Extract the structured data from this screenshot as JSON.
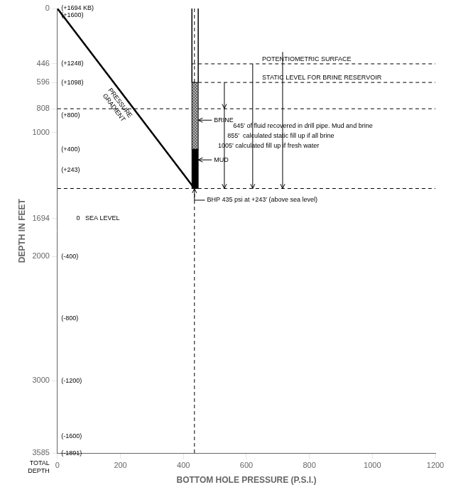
{
  "chart_data": {
    "type": "line",
    "xlabel": "BOTTOM HOLE PRESSURE (P.S.I.)",
    "ylabel": "DEPTH IN FEET",
    "xlim": [
      0,
      1200
    ],
    "ylim": [
      3585,
      0
    ],
    "xticks": [
      0,
      200,
      400,
      600,
      800,
      1000,
      1200
    ],
    "yticks": [
      0,
      446,
      596,
      808,
      1000,
      1694,
      2000,
      3000,
      3585
    ],
    "grid": false,
    "legend": false,
    "series": [
      {
        "x": [
          0,
          435
        ],
        "values": [
          0,
          1451
        ],
        "color": "#000000",
        "line_style": "solid",
        "label": "PRESSURE\nGRADIENT"
      },
      {
        "x": [
          427,
          1200
        ],
        "values": [
          446,
          446
        ],
        "color": "#000000",
        "line_style": "dashed"
      },
      {
        "x": [
          427,
          1200
        ],
        "values": [
          596,
          596
        ],
        "color": "#000000",
        "line_style": "dashed"
      },
      {
        "x": [
          0,
          1200
        ],
        "values": [
          808,
          808
        ],
        "color": "#000000",
        "line_style": "dashed"
      },
      {
        "x": [
          0,
          1200
        ],
        "values": [
          1451,
          1451
        ],
        "color": "#000000",
        "line_style": "dashed"
      },
      {
        "x": [
          435,
          435
        ],
        "values": [
          0,
          3585
        ],
        "color": "#000000",
        "line_style": "dashed"
      },
      {
        "x": [
          427,
          427
        ],
        "values": [
          0,
          596
        ],
        "color": "#000000",
        "line_style": "solid"
      },
      {
        "x": [
          447,
          447
        ],
        "values": [
          0,
          596
        ],
        "color": "#000000",
        "line_style": "solid"
      }
    ],
    "regions": [
      {
        "x": [
          427,
          447
        ],
        "values": [
          596,
          1135
        ],
        "color": "#c0c0c0"
      },
      {
        "x": [
          427,
          447
        ],
        "values": [
          1135,
          1451
        ],
        "color": "#000000"
      }
    ],
    "arrows": [
      {
        "x": 530,
        "from": 806,
        "to": 1451
      },
      {
        "x": 530,
        "from": 596,
        "to": 806
      },
      {
        "x": 620,
        "from": 446,
        "to": 1451
      },
      {
        "x": 715,
        "from": 350,
        "to": 1451
      }
    ],
    "annotations": [
      {
        "text": "(+1694 KB)",
        "x": 12,
        "y": 0
      },
      {
        "text": "(+1600)",
        "x": 12,
        "y": 55
      },
      {
        "text": "(+1248)",
        "x": 12,
        "y": 446
      },
      {
        "text": "(+1098)",
        "x": 12,
        "y": 596
      },
      {
        "text": "(+800)",
        "x": 12,
        "y": 860
      },
      {
        "text": "(+400)",
        "x": 12,
        "y": 1135
      },
      {
        "text": "(+243)",
        "x": 12,
        "y": 1302
      },
      {
        "text": "(-400)",
        "x": 12,
        "y": 2000
      },
      {
        "text": "(-800)",
        "x": 12,
        "y": 2500
      },
      {
        "text": "(-1200)",
        "x": 12,
        "y": 3000
      },
      {
        "text": "(-1600)",
        "x": 12,
        "y": 3450
      },
      {
        "text": "(-1891)",
        "x": 12,
        "y": 3585
      },
      {
        "text": "0   SEA LEVEL",
        "x": 60,
        "y": 1694
      },
      {
        "text": "TOTAL\nDEPTH",
        "y": 3585
      },
      {
        "text": "POTENTIOMETRIC SURFACE",
        "x": 650,
        "y": 446
      },
      {
        "text": "STATIC LEVEL FOR BRINE RESERVOIR",
        "x": 650,
        "y": 596
      },
      {
        "text": "BRINE",
        "x": 497,
        "y": 900,
        "arrow_to": [
          447,
          900
        ]
      },
      {
        "text": "MUD",
        "x": 497,
        "y": 1220,
        "arrow_to": [
          447,
          1220
        ]
      },
      {
        "text": "645' of fluid recovered in drill pipe. Mud and brine",
        "x": 558,
        "y": 950
      },
      {
        "text": "855'  calculated static fill up if all brine",
        "x": 540,
        "y": 1030
      },
      {
        "text": "1005' calculated fill up if fresh water",
        "x": 510,
        "y": 1110
      },
      {
        "text": "BHP 435 psi at +243' (above sea level)",
        "x": 475,
        "y": 1545,
        "arrow_to": [
          435,
          1451
        ]
      }
    ]
  }
}
